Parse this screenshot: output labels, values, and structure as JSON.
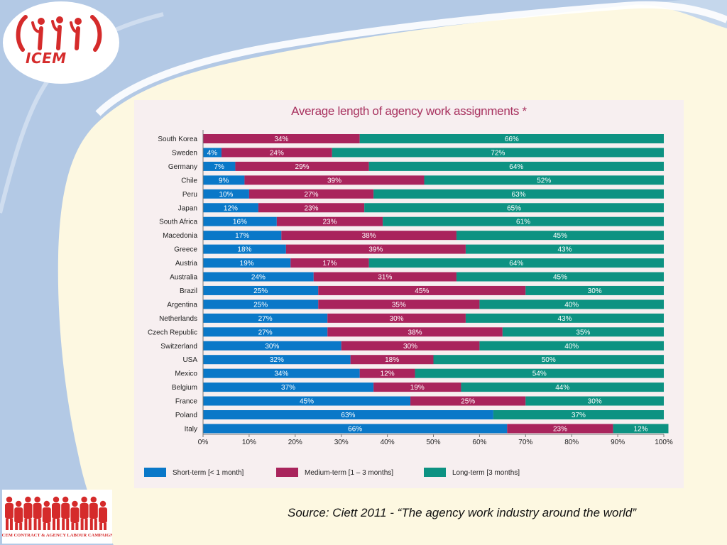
{
  "branding": {
    "logo_text": "ICEM",
    "campaign_banner_text": "ICEM CONTRACT & AGENCY LABOUR CAMPAIGN"
  },
  "source_note": "Source: Ciett 2011 - “The agency work industry around the world”",
  "colors": {
    "short_term": "#0a78c8",
    "medium_term": "#a9245c",
    "long_term": "#0d9282",
    "brand_red": "#d52b2b",
    "title": "#a8325f"
  },
  "chart_data": {
    "type": "bar",
    "orientation": "horizontal",
    "stacked": true,
    "title": "Average length of agency work assignments *",
    "xlabel": "",
    "ylabel": "",
    "xlim": [
      0,
      100
    ],
    "x_ticks": [
      "0%",
      "10%",
      "20%",
      "30%",
      "40%",
      "50%",
      "60%",
      "70%",
      "80%",
      "90%",
      "100%"
    ],
    "legend_position": "bottom",
    "grid": false,
    "categories": [
      "South Korea",
      "Sweden",
      "Germany",
      "Chile",
      "Peru",
      "Japan",
      "South Africa",
      "Macedonia",
      "Greece",
      "Austria",
      "Australia",
      "Brazil",
      "Argentina",
      "Netherlands",
      "Czech Republic",
      "Switzerland",
      "USA",
      "Mexico",
      "Belgium",
      "France",
      "Poland",
      "Italy"
    ],
    "series": [
      {
        "name": "Short-term [< 1 month]",
        "values": [
          0,
          4,
          7,
          9,
          10,
          12,
          16,
          17,
          18,
          19,
          24,
          25,
          25,
          27,
          27,
          30,
          32,
          34,
          37,
          45,
          63,
          66
        ],
        "labels": [
          "",
          "4%",
          "7%",
          "9%",
          "10%",
          "12%",
          "16%",
          "17%",
          "18%",
          "19%",
          "24%",
          "25%",
          "25%",
          "27%",
          "27%",
          "30%",
          "32%",
          "34%",
          "37%",
          "45%",
          "63%",
          "66%"
        ]
      },
      {
        "name": "Medium-term [1 – 3 months]",
        "values": [
          34,
          24,
          29,
          39,
          27,
          23,
          23,
          38,
          39,
          17,
          31,
          45,
          35,
          30,
          38,
          30,
          18,
          12,
          19,
          25,
          0,
          23
        ],
        "labels": [
          "34%",
          "24%",
          "29%",
          "39%",
          "27%",
          "23%",
          "23%",
          "38%",
          "39%",
          "17%",
          "31%",
          "45%",
          "35%",
          "30%",
          "38%",
          "30%",
          "18%",
          "12%",
          "19%",
          "25%",
          "",
          "23%"
        ]
      },
      {
        "name": "Long-term [3 months]",
        "values": [
          66,
          72,
          64,
          52,
          63,
          65,
          61,
          45,
          43,
          64,
          45,
          30,
          40,
          43,
          35,
          40,
          50,
          54,
          44,
          30,
          37,
          12
        ],
        "labels": [
          "66%",
          "72%",
          "64%",
          "52%",
          "63%",
          "65%",
          "61%",
          "45%",
          "43%",
          "64%",
          "45%",
          "30%",
          "40%",
          "43%",
          "35%",
          "40%",
          "50%",
          "54%",
          "44%",
          "30%",
          "37%",
          "12%"
        ]
      }
    ]
  }
}
